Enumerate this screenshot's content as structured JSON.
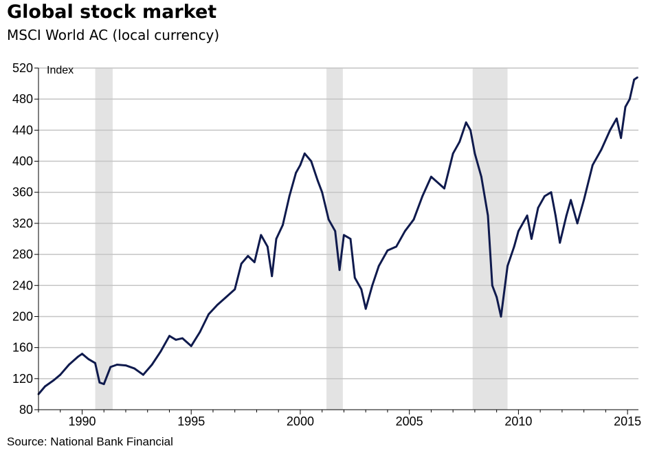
{
  "chart_data": {
    "type": "line",
    "title": "Global stock market",
    "subtitle": "MSCI World AC (local currency)",
    "ylabel": "Index",
    "xlabel": "",
    "source": "Source: National Bank Financial",
    "ylim": [
      80,
      520
    ],
    "xlim": [
      1988.0,
      2015.5
    ],
    "yticks": [
      80,
      120,
      160,
      200,
      240,
      280,
      320,
      360,
      400,
      440,
      480,
      520
    ],
    "xticks": [
      1990,
      1995,
      2000,
      2005,
      2010,
      2015
    ],
    "grid": true,
    "recessions": [
      [
        1990.6,
        1991.4
      ],
      [
        2001.2,
        2001.95
      ],
      [
        2007.9,
        2009.5
      ]
    ],
    "series": [
      {
        "name": "MSCI World AC",
        "color": "#0f1a4d",
        "x": [
          1988.0,
          1988.3,
          1988.7,
          1989.0,
          1989.4,
          1989.8,
          1990.0,
          1990.3,
          1990.6,
          1990.8,
          1991.0,
          1991.3,
          1991.6,
          1992.0,
          1992.4,
          1992.8,
          1993.2,
          1993.6,
          1994.0,
          1994.3,
          1994.6,
          1995.0,
          1995.4,
          1995.8,
          1996.2,
          1996.6,
          1997.0,
          1997.3,
          1997.6,
          1997.9,
          1998.2,
          1998.5,
          1998.7,
          1998.9,
          1999.2,
          1999.5,
          1999.8,
          2000.0,
          2000.2,
          2000.5,
          2000.8,
          2001.0,
          2001.3,
          2001.6,
          2001.8,
          2002.0,
          2002.3,
          2002.5,
          2002.8,
          2003.0,
          2003.3,
          2003.6,
          2004.0,
          2004.4,
          2004.8,
          2005.2,
          2005.6,
          2006.0,
          2006.4,
          2006.6,
          2007.0,
          2007.3,
          2007.6,
          2007.8,
          2008.0,
          2008.3,
          2008.6,
          2008.8,
          2009.0,
          2009.2,
          2009.5,
          2009.8,
          2010.0,
          2010.4,
          2010.6,
          2010.9,
          2011.2,
          2011.5,
          2011.7,
          2011.9,
          2012.2,
          2012.4,
          2012.7,
          2013.0,
          2013.4,
          2013.8,
          2014.2,
          2014.5,
          2014.7,
          2014.9,
          2015.1,
          2015.3,
          2015.45
        ],
        "values": [
          100,
          110,
          118,
          125,
          138,
          148,
          152,
          145,
          140,
          115,
          113,
          135,
          138,
          137,
          133,
          125,
          138,
          155,
          175,
          170,
          172,
          162,
          180,
          203,
          215,
          225,
          235,
          268,
          278,
          270,
          305,
          290,
          252,
          300,
          318,
          355,
          385,
          395,
          410,
          400,
          375,
          360,
          325,
          310,
          260,
          305,
          300,
          250,
          235,
          210,
          240,
          265,
          285,
          290,
          310,
          325,
          355,
          380,
          370,
          365,
          410,
          425,
          450,
          440,
          410,
          380,
          330,
          240,
          225,
          200,
          265,
          290,
          310,
          330,
          300,
          340,
          355,
          360,
          330,
          295,
          330,
          350,
          320,
          350,
          395,
          415,
          440,
          455,
          430,
          470,
          480,
          505,
          508
        ]
      }
    ]
  }
}
